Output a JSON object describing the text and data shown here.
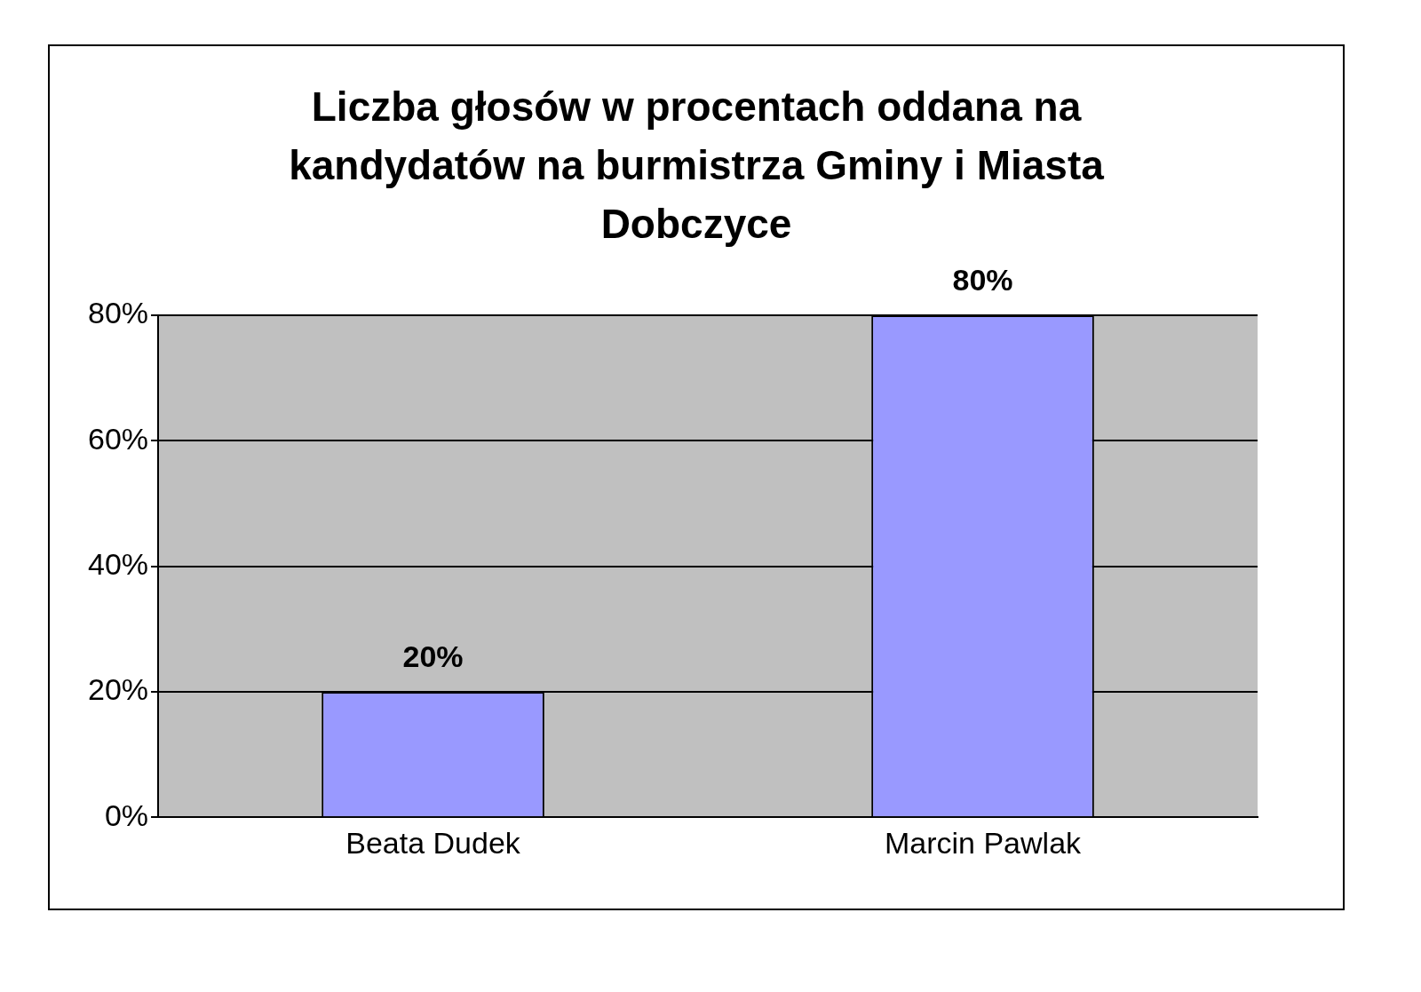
{
  "chart_data": {
    "type": "bar",
    "title": "Liczba głosów w procentach oddana na kandydatów na burmistrza Gminy i Miasta Dobczyce",
    "categories": [
      "Beata Dudek",
      "Marcin Pawlak"
    ],
    "values": [
      20,
      80
    ],
    "value_labels": [
      "20%",
      "80%"
    ],
    "color": "#9999ff",
    "ylim": [
      0,
      80
    ],
    "yticks": [
      {
        "value": 0,
        "label": "0%"
      },
      {
        "value": 20,
        "label": "20%"
      },
      {
        "value": 40,
        "label": "40%"
      },
      {
        "value": 60,
        "label": "60%"
      },
      {
        "value": 80,
        "label": "80%"
      }
    ],
    "grid": "y",
    "legend": false
  }
}
